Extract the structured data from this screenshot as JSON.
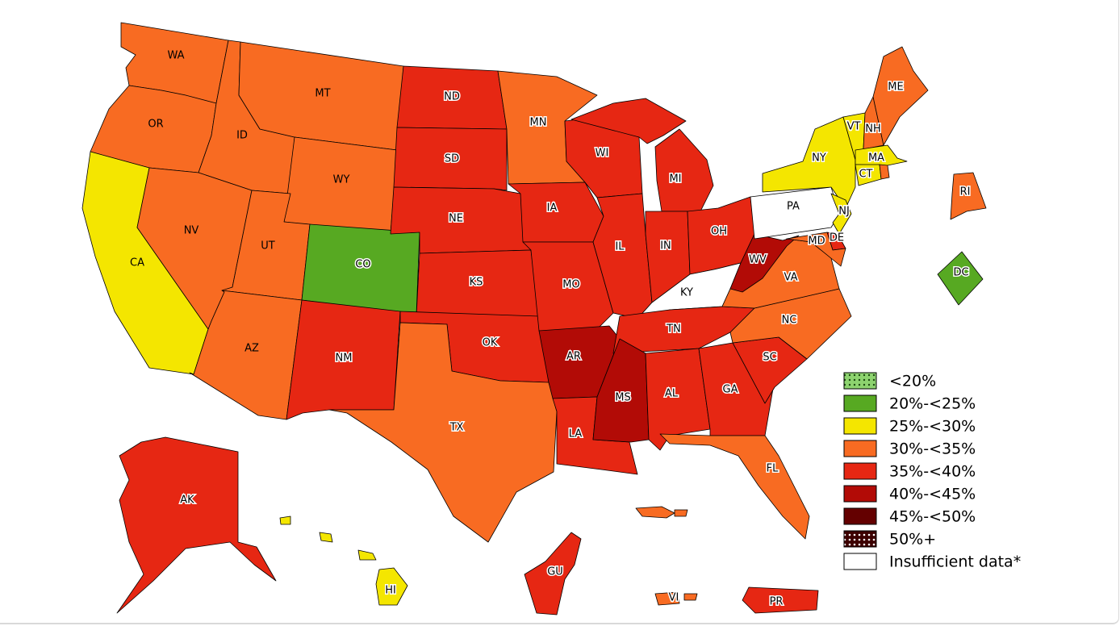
{
  "colors": {
    "lt20": "#8dd36f",
    "b20_25": "#57a922",
    "b25_30": "#f4e600",
    "b30_35": "#f86b22",
    "b35_40": "#e62713",
    "b40_45": "#b20b06",
    "b45_50": "#640000",
    "b50p": "#3c0000",
    "insufficient": "#ffffff"
  },
  "legend": {
    "items": [
      {
        "key": "lt20",
        "label": "<20%",
        "pattern": "dots-dark"
      },
      {
        "key": "b20_25",
        "label": "20%-<25%"
      },
      {
        "key": "b25_30",
        "label": "25%-<30%"
      },
      {
        "key": "b30_35",
        "label": "30%-<35%"
      },
      {
        "key": "b35_40",
        "label": "35%-<40%"
      },
      {
        "key": "b40_45",
        "label": "40%-<45%"
      },
      {
        "key": "b45_50",
        "label": "45%-<50%"
      },
      {
        "key": "b50p",
        "label": "50%+",
        "pattern": "dots-light"
      },
      {
        "key": "insufficient",
        "label": "Insufficient data*"
      }
    ]
  },
  "states": {
    "WA": {
      "label": "WA",
      "category": "b30_35"
    },
    "OR": {
      "label": "OR",
      "category": "b30_35"
    },
    "CA": {
      "label": "CA",
      "category": "b25_30"
    },
    "ID": {
      "label": "ID",
      "category": "b30_35"
    },
    "NV": {
      "label": "NV",
      "category": "b30_35"
    },
    "MT": {
      "label": "MT",
      "category": "b30_35"
    },
    "WY": {
      "label": "WY",
      "category": "b30_35"
    },
    "UT": {
      "label": "UT",
      "category": "b30_35"
    },
    "AZ": {
      "label": "AZ",
      "category": "b30_35"
    },
    "CO": {
      "label": "CO",
      "category": "b20_25"
    },
    "NM": {
      "label": "NM",
      "category": "b35_40"
    },
    "ND": {
      "label": "ND",
      "category": "b35_40"
    },
    "SD": {
      "label": "SD",
      "category": "b35_40"
    },
    "NE": {
      "label": "NE",
      "category": "b35_40"
    },
    "KS": {
      "label": "KS",
      "category": "b35_40"
    },
    "OK": {
      "label": "OK",
      "category": "b35_40"
    },
    "TX": {
      "label": "TX",
      "category": "b30_35"
    },
    "MN": {
      "label": "MN",
      "category": "b30_35"
    },
    "IA": {
      "label": "IA",
      "category": "b35_40"
    },
    "MO": {
      "label": "MO",
      "category": "b35_40"
    },
    "AR": {
      "label": "AR",
      "category": "b40_45"
    },
    "LA": {
      "label": "LA",
      "category": "b35_40"
    },
    "WI": {
      "label": "WI",
      "category": "b35_40"
    },
    "IL": {
      "label": "IL",
      "category": "b35_40"
    },
    "MI": {
      "label": "MI",
      "category": "b35_40"
    },
    "IN": {
      "label": "IN",
      "category": "b35_40"
    },
    "OH": {
      "label": "OH",
      "category": "b35_40"
    },
    "KY": {
      "label": "KY",
      "category": "insufficient"
    },
    "TN": {
      "label": "TN",
      "category": "b35_40"
    },
    "MS": {
      "label": "MS",
      "category": "b40_45"
    },
    "AL": {
      "label": "AL",
      "category": "b35_40"
    },
    "GA": {
      "label": "GA",
      "category": "b35_40"
    },
    "FL": {
      "label": "FL",
      "category": "b30_35"
    },
    "SC": {
      "label": "SC",
      "category": "b35_40"
    },
    "NC": {
      "label": "NC",
      "category": "b30_35"
    },
    "VA": {
      "label": "VA",
      "category": "b30_35"
    },
    "WV": {
      "label": "WV",
      "category": "b40_45"
    },
    "PA": {
      "label": "PA",
      "category": "insufficient"
    },
    "NY": {
      "label": "NY",
      "category": "b25_30"
    },
    "NJ": {
      "label": "NJ",
      "category": "b25_30"
    },
    "DE": {
      "label": "DE",
      "category": "b35_40"
    },
    "MD": {
      "label": "MD",
      "category": "b30_35"
    },
    "VT": {
      "label": "VT",
      "category": "b25_30"
    },
    "NH": {
      "label": "NH",
      "category": "b30_35"
    },
    "ME": {
      "label": "ME",
      "category": "b30_35"
    },
    "MA": {
      "label": "MA",
      "category": "b25_30"
    },
    "CT": {
      "label": "CT",
      "category": "b25_30"
    },
    "RI": {
      "label": "RI",
      "category": "b30_35"
    },
    "DC": {
      "label": "DC",
      "category": "b20_25"
    },
    "AK": {
      "label": "AK",
      "category": "b35_40"
    },
    "HI": {
      "label": "HI",
      "category": "b25_30"
    },
    "GU": {
      "label": "GU",
      "category": "b35_40"
    },
    "PR": {
      "label": "PR",
      "category": "b35_40"
    },
    "VI": {
      "label": "VI",
      "category": "b30_35"
    }
  }
}
